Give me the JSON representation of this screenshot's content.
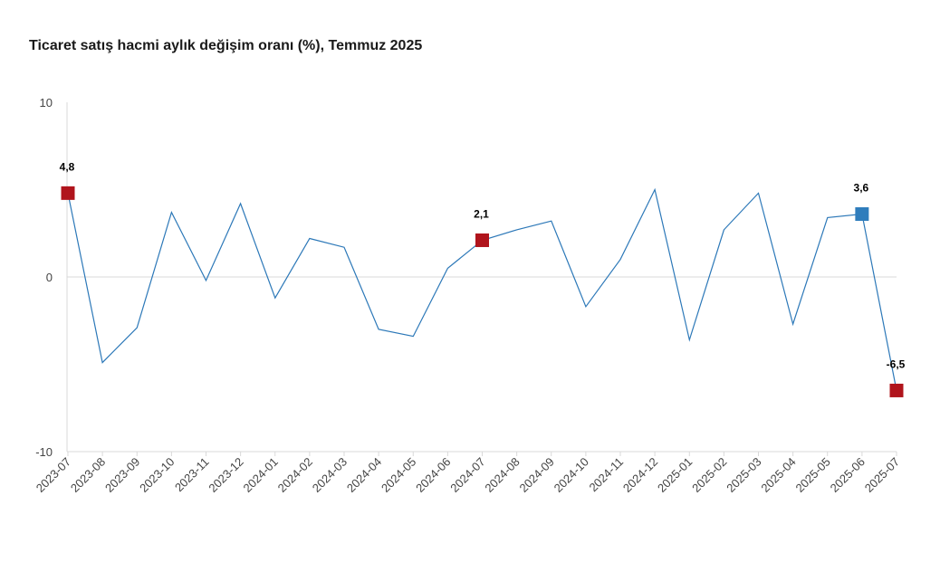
{
  "chart_data": {
    "type": "line",
    "title": "Ticaret satış hacmi aylık değişim oranı (%), Temmuz 2025",
    "xlabel": "",
    "ylabel": "",
    "ylim": [
      -10,
      10
    ],
    "yticks": [
      "-10",
      "0",
      "10"
    ],
    "categories": [
      "2023-07",
      "2023-08",
      "2023-09",
      "2023-10",
      "2023-11",
      "2023-12",
      "2024-01",
      "2024-02",
      "2024-03",
      "2024-04",
      "2024-05",
      "2024-06",
      "2024-07",
      "2024-08",
      "2024-09",
      "2024-10",
      "2024-11",
      "2024-12",
      "2025-01",
      "2025-02",
      "2025-03",
      "2025-04",
      "2025-05",
      "2025-06",
      "2025-07"
    ],
    "series": [
      {
        "values": [
          4.8,
          -4.9,
          -2.9,
          3.7,
          -0.2,
          4.2,
          -1.2,
          2.2,
          1.7,
          -3.0,
          -3.4,
          0.5,
          2.1,
          2.7,
          3.2,
          -1.7,
          1.0,
          5.0,
          -3.6,
          2.7,
          4.8,
          -2.7,
          3.4,
          3.6,
          -6.5
        ],
        "color": "#2c78b8"
      }
    ],
    "highlights": [
      {
        "index": 0,
        "label": "4,8",
        "color": "#b0141c"
      },
      {
        "index": 12,
        "label": "2,1",
        "color": "#b0141c"
      },
      {
        "index": 23,
        "label": "3,6",
        "color": "#2f7dbc"
      },
      {
        "index": 24,
        "label": "-6,5",
        "color": "#b0141c"
      }
    ],
    "grid": false
  }
}
